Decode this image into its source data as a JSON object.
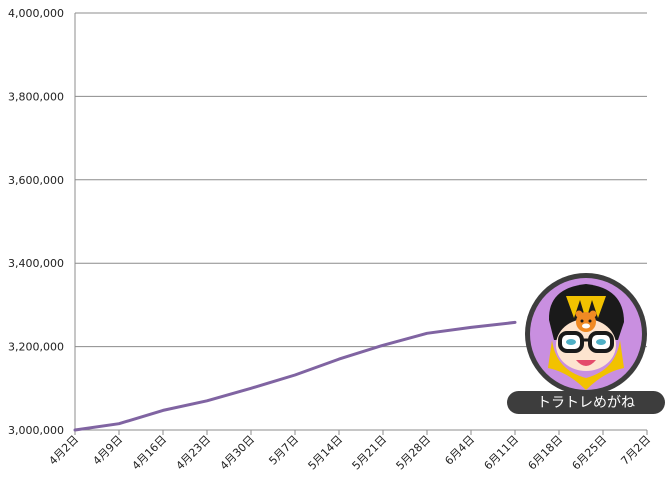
{
  "chart_data": {
    "type": "line",
    "title": "",
    "xlabel": "",
    "ylabel": "",
    "ylim": [
      3000000,
      4000000
    ],
    "yticks": [
      "3,000,000",
      "3,200,000",
      "3,400,000",
      "3,600,000",
      "3,800,000",
      "4,000,000"
    ],
    "categories": [
      "4月2日",
      "4月9日",
      "4月16日",
      "4月23日",
      "4月30日",
      "5月7日",
      "5月14日",
      "5月21日",
      "5月28日",
      "6月4日",
      "6月11日",
      "6月18日",
      "6月25日",
      "7月2日"
    ],
    "series": [
      {
        "color": "#8064a2",
        "values": [
          3000000,
          3015000,
          3047000,
          3070000,
          3100000,
          3132000,
          3170000,
          3203000,
          3232000,
          3246000,
          3258000,
          null,
          null,
          null
        ]
      }
    ],
    "grid": true,
    "legend": "none"
  },
  "badge": {
    "caption": "トラトレめがね",
    "colors": {
      "ring": "#3d3d3d",
      "fill": "#c98fe0",
      "caption_bg": "#3d3d3d",
      "caption_text": "#ffffff"
    }
  }
}
